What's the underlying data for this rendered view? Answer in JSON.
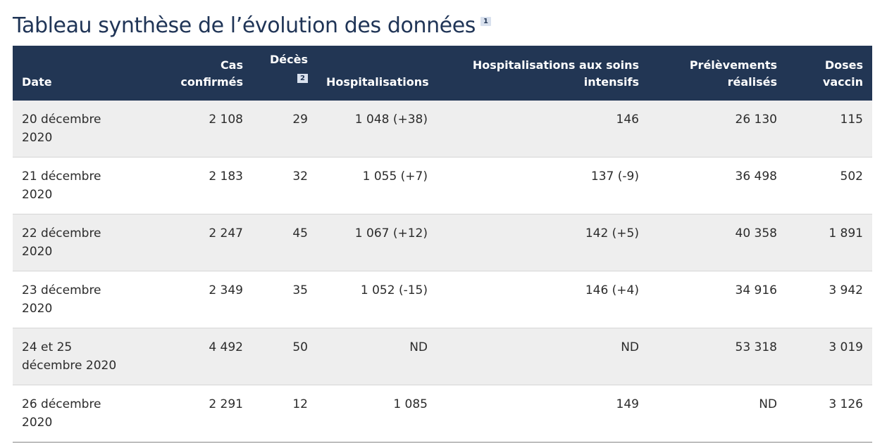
{
  "title": "Tableau synthèse de l’évolution des données",
  "title_note": "1",
  "headers": {
    "date": "Date",
    "cas_line1": "Cas",
    "cas_line2": "confirmés",
    "deces": "Décès",
    "deces_note": "2",
    "hosp": "Hospitalisations",
    "si_line1": "Hospitalisations aux soins",
    "si_line2": "intensifs",
    "prel_line1": "Prélèvements",
    "prel_line2": "réalisés",
    "doses_line1": "Doses",
    "doses_line2": "vaccin"
  },
  "rows": [
    {
      "date": "20 décembre 2020",
      "cas": "2 108",
      "deces": "29",
      "hosp": "1 048 (+38)",
      "si": "146",
      "prel": "26 130",
      "doses": "115"
    },
    {
      "date": "21 décembre 2020",
      "cas": "2 183",
      "deces": "32",
      "hosp": "1 055 (+7)",
      "si": "137 (-9)",
      "prel": "36 498",
      "doses": "502"
    },
    {
      "date": "22 décembre 2020",
      "cas": "2 247",
      "deces": "45",
      "hosp": "1 067 (+12)",
      "si": "142 (+5)",
      "prel": "40 358",
      "doses": "1 891"
    },
    {
      "date": "23 décembre 2020",
      "cas": "2 349",
      "deces": "35",
      "hosp": "1 052 (-15)",
      "si": "146 (+4)",
      "prel": "34 916",
      "doses": "3 942"
    },
    {
      "date": "24 et 25 décembre 2020",
      "cas": "4 492",
      "deces": "50",
      "hosp": "ND",
      "si": "ND",
      "prel": "53 318",
      "doses": "3 019"
    },
    {
      "date": "26 décembre 2020",
      "cas": "2 291",
      "deces": "12",
      "hosp": "1 085",
      "si": "149",
      "prel": "ND",
      "doses": "3 126"
    }
  ]
}
